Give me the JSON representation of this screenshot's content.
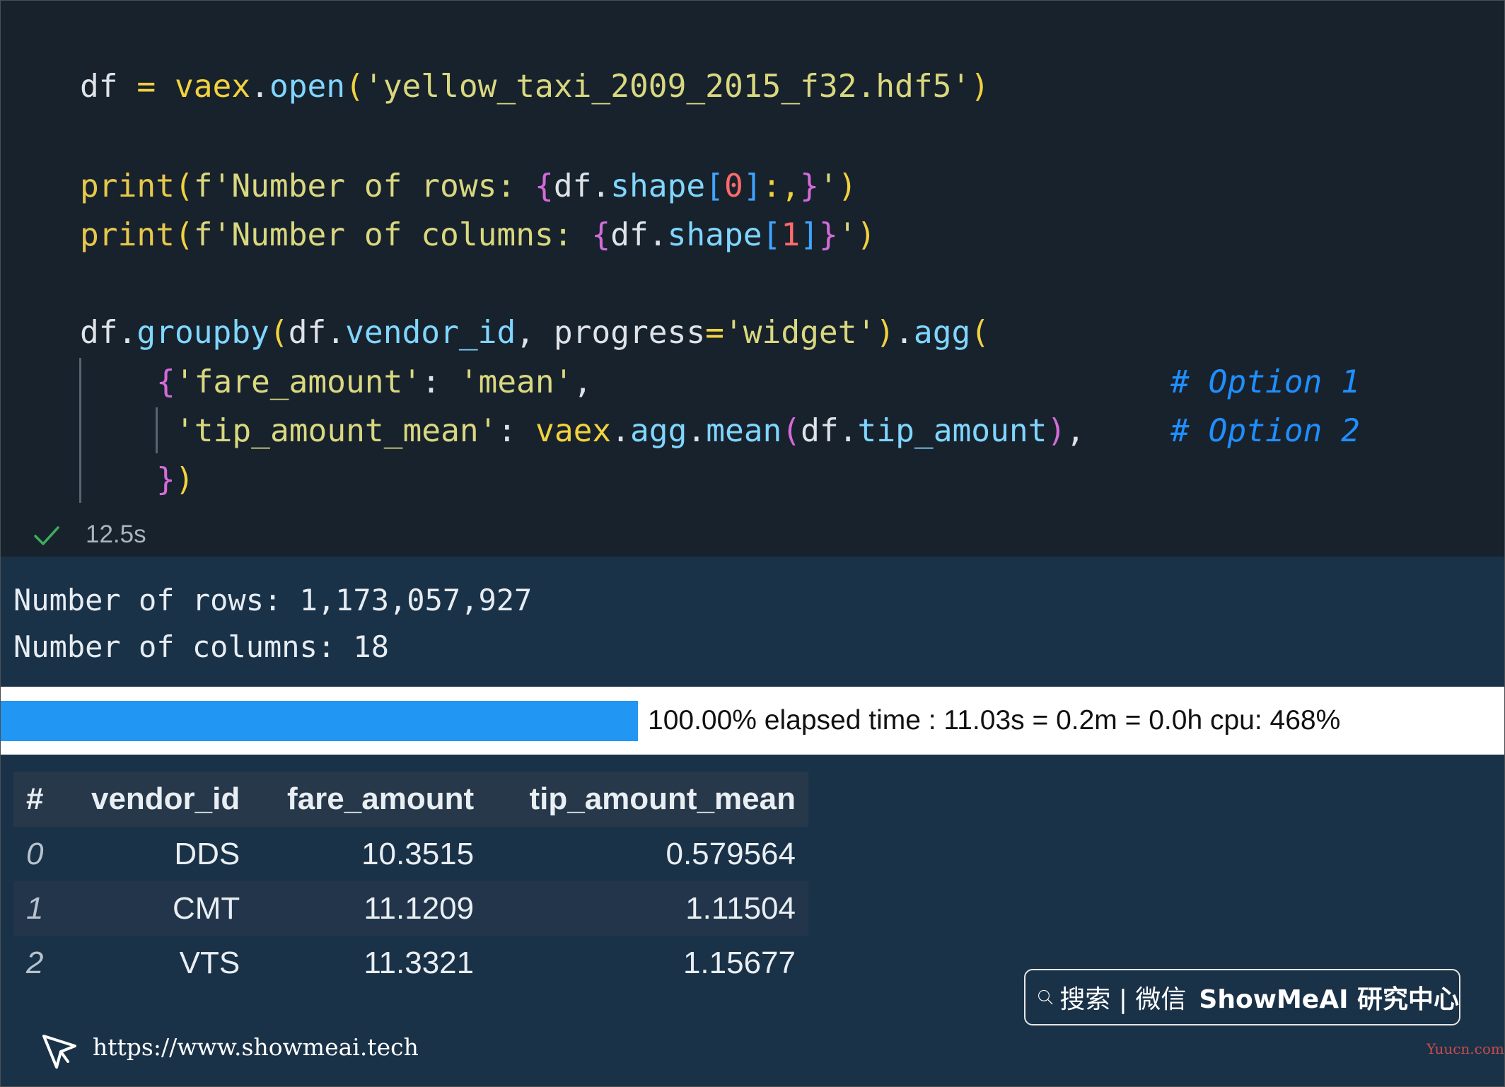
{
  "code": {
    "line1": {
      "a": "df",
      "b": " = ",
      "c": "vaex",
      "d": ".",
      "e": "open",
      "f": "(",
      "g": "'yellow_taxi_2009_2015_f32.hdf5'",
      "h": ")"
    },
    "line2": {
      "a": "print",
      "b": "(",
      "c": "f'Number of rows: ",
      "d": "{",
      "e": "df",
      "f": ".",
      "g": "shape",
      "h": "[",
      "i": "0",
      "j": "]",
      "k": ":,",
      "l": "}",
      "m": "'",
      "n": ")"
    },
    "line3": {
      "a": "print",
      "b": "(",
      "c": "f'Number of columns: ",
      "d": "{",
      "e": "df",
      "f": ".",
      "g": "shape",
      "h": "[",
      "i": "1",
      "j": "]",
      "l": "}",
      "m": "'",
      "n": ")"
    },
    "line4": {
      "a": "df",
      "b": ".",
      "c": "groupby",
      "d": "(",
      "e": "df",
      "f": ".",
      "g": "vendor_id",
      "h": ", progress",
      "i": "=",
      "j": "'widget'",
      "k": ")",
      "l": ".",
      "m": "agg",
      "n": "("
    },
    "line5": {
      "a": "{",
      "b": "'fare_amount'",
      "c": ": ",
      "d": "'mean'",
      "e": ",",
      "comment": "# Option 1"
    },
    "line6": {
      "a": "'tip_amount_mean'",
      "b": ": ",
      "c": "vaex",
      "d": ".",
      "e": "agg",
      "f": ".",
      "g": "mean",
      "h": "(",
      "i": "df",
      "j": ".",
      "k": "tip_amount",
      "l": ")",
      "m": ",",
      "comment": "# Option 2"
    },
    "line7": {
      "a": "}",
      "b": ")"
    }
  },
  "execution": {
    "status_icon": "check-icon",
    "elapsed": "12.5s"
  },
  "output": {
    "line1": "Number of rows: 1,173,057,927",
    "line2": "Number of columns: 18"
  },
  "progress": {
    "fraction": 0.4236,
    "text": "100.00% elapsed time : 11.03s = 0.2m = 0.0h cpu: 468%",
    "bar_color": "#2196f3"
  },
  "table": {
    "headers": [
      "#",
      "vendor_id",
      "fare_amount",
      "tip_amount_mean"
    ],
    "rows": [
      [
        "0",
        "DDS",
        "10.3515",
        "0.579564"
      ],
      [
        "1",
        "CMT",
        "11.1209",
        "1.11504"
      ],
      [
        "2",
        "VTS",
        "11.3321",
        "1.15677"
      ]
    ]
  },
  "watermark": {
    "search_label": "搜索 | 微信",
    "brand": "ShowMeAI 研究中心",
    "url": "https://www.showmeai.tech",
    "corner": "Yuucn.com"
  }
}
